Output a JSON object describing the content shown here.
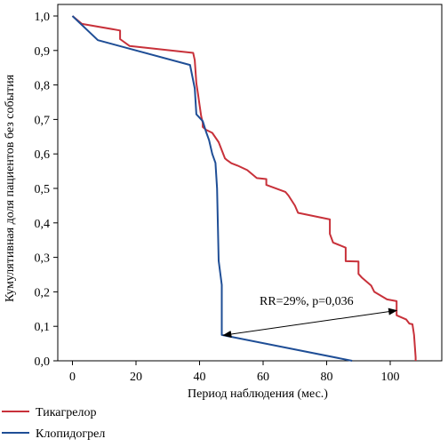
{
  "chart_data": {
    "type": "line",
    "title": "",
    "xlabel": "Период наблюдения (мес.)",
    "ylabel": "Кумулятивная доля пациентов без события",
    "xlim": [
      0,
      108
    ],
    "ylim": [
      0,
      1.0
    ],
    "x_ticks": [
      0,
      20,
      40,
      60,
      80,
      100
    ],
    "x_tick_labels": [
      "0",
      "20",
      "40",
      "60",
      "80",
      "100"
    ],
    "y_ticks": [
      0,
      0.1,
      0.2,
      0.3,
      0.4,
      0.5,
      0.6,
      0.7,
      0.8,
      0.9,
      1.0
    ],
    "y_tick_labels": [
      "0,0",
      "0,1",
      "0,2",
      "0,3",
      "0,4",
      "0,5",
      "0,6",
      "0,7",
      "0,8",
      "0,9",
      "1,0"
    ],
    "grid": false,
    "legend_position": "bottom-left",
    "series": [
      {
        "name": "Тикагрелор",
        "color": "#c8313a",
        "points": [
          [
            0,
            1.0
          ],
          [
            3,
            0.977
          ],
          [
            15,
            0.958
          ],
          [
            15,
            0.933
          ],
          [
            18,
            0.913
          ],
          [
            38,
            0.893
          ],
          [
            38.5,
            0.872
          ],
          [
            39,
            0.805
          ],
          [
            39.5,
            0.775
          ],
          [
            40,
            0.742
          ],
          [
            40.5,
            0.71
          ],
          [
            41,
            0.69
          ],
          [
            41,
            0.678
          ],
          [
            42,
            0.67
          ],
          [
            44,
            0.661
          ],
          [
            46,
            0.634
          ],
          [
            48,
            0.587
          ],
          [
            48.5,
            0.583
          ],
          [
            50,
            0.573
          ],
          [
            52,
            0.566
          ],
          [
            55,
            0.553
          ],
          [
            58,
            0.53
          ],
          [
            61,
            0.527
          ],
          [
            61,
            0.51
          ],
          [
            67,
            0.49
          ],
          [
            68,
            0.479
          ],
          [
            70,
            0.45
          ],
          [
            71,
            0.429
          ],
          [
            81,
            0.41
          ],
          [
            81,
            0.368
          ],
          [
            82,
            0.343
          ],
          [
            86,
            0.328
          ],
          [
            86,
            0.289
          ],
          [
            90,
            0.288
          ],
          [
            90,
            0.252
          ],
          [
            91,
            0.242
          ],
          [
            94,
            0.218
          ],
          [
            95,
            0.2
          ],
          [
            99,
            0.178
          ],
          [
            102,
            0.173
          ],
          [
            102,
            0.132
          ],
          [
            105,
            0.12
          ],
          [
            106,
            0.108
          ],
          [
            107,
            0.106
          ],
          [
            107.5,
            0.075
          ],
          [
            108,
            0.01
          ],
          [
            108,
            0.0
          ]
        ]
      },
      {
        "name": "Клопидогрел",
        "color": "#1f4e96",
        "points": [
          [
            0,
            1.0
          ],
          [
            8,
            0.93
          ],
          [
            37,
            0.858
          ],
          [
            38.5,
            0.79
          ],
          [
            39,
            0.715
          ],
          [
            41,
            0.695
          ],
          [
            42,
            0.665
          ],
          [
            43,
            0.64
          ],
          [
            44,
            0.6
          ],
          [
            45,
            0.574
          ],
          [
            45.5,
            0.5
          ],
          [
            46,
            0.29
          ],
          [
            47,
            0.22
          ],
          [
            47,
            0.075
          ],
          [
            88,
            0.0
          ]
        ]
      }
    ],
    "annotations": [
      {
        "text": "RR=29%, p=0,036",
        "arrow_from": [
          102,
          0.146
        ],
        "arrow_to": [
          47.5,
          0.074
        ]
      }
    ]
  }
}
